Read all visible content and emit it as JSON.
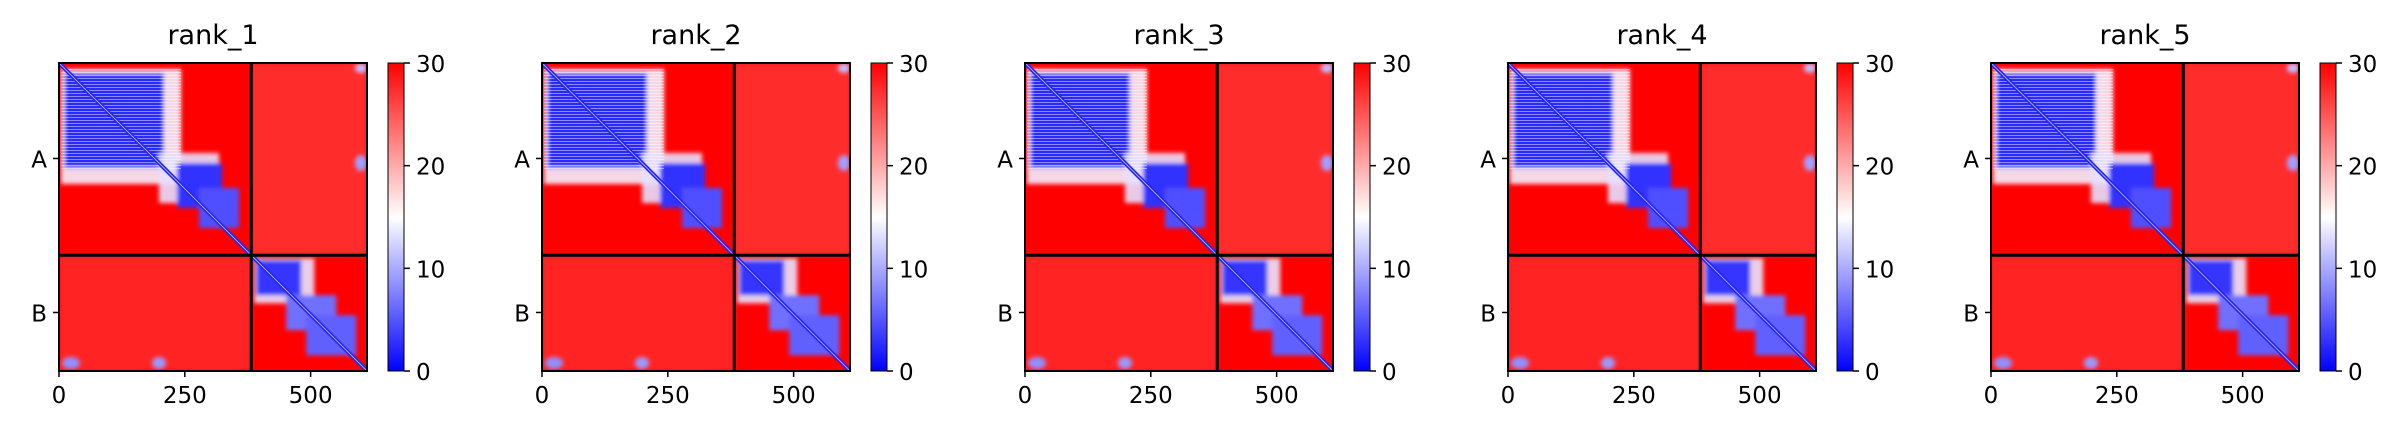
{
  "colorbar": {
    "ticks": [
      "0",
      "10",
      "20",
      "30"
    ],
    "range": [
      0,
      30
    ],
    "colormap": "bwr",
    "colors": {
      "low": "#0000ff",
      "mid": "#ffffff",
      "high": "#ff0000"
    }
  },
  "chart_data": [
    {
      "type": "heatmap",
      "title": "rank_1",
      "xticks": [
        "0",
        "250",
        "500"
      ],
      "ytick_labels": [
        "A",
        "B"
      ],
      "x_range": [
        0,
        612
      ],
      "chain_boundary": 382,
      "value_range": [
        0,
        30
      ],
      "grid": false
    },
    {
      "type": "heatmap",
      "title": "rank_2",
      "xticks": [
        "0",
        "250",
        "500"
      ],
      "ytick_labels": [
        "A",
        "B"
      ],
      "x_range": [
        0,
        612
      ],
      "chain_boundary": 382,
      "value_range": [
        0,
        30
      ],
      "grid": false
    },
    {
      "type": "heatmap",
      "title": "rank_3",
      "xticks": [
        "0",
        "250",
        "500"
      ],
      "ytick_labels": [
        "A",
        "B"
      ],
      "x_range": [
        0,
        612
      ],
      "chain_boundary": 382,
      "value_range": [
        0,
        30
      ],
      "grid": false
    },
    {
      "type": "heatmap",
      "title": "rank_4",
      "xticks": [
        "0",
        "250",
        "500"
      ],
      "ytick_labels": [
        "A",
        "B"
      ],
      "x_range": [
        0,
        612
      ],
      "chain_boundary": 382,
      "value_range": [
        0,
        30
      ],
      "grid": false
    },
    {
      "type": "heatmap",
      "title": "rank_5",
      "xticks": [
        "0",
        "250",
        "500"
      ],
      "ytick_labels": [
        "A",
        "B"
      ],
      "x_range": [
        0,
        612
      ],
      "chain_boundary": 382,
      "value_range": [
        0,
        30
      ],
      "grid": false
    }
  ]
}
